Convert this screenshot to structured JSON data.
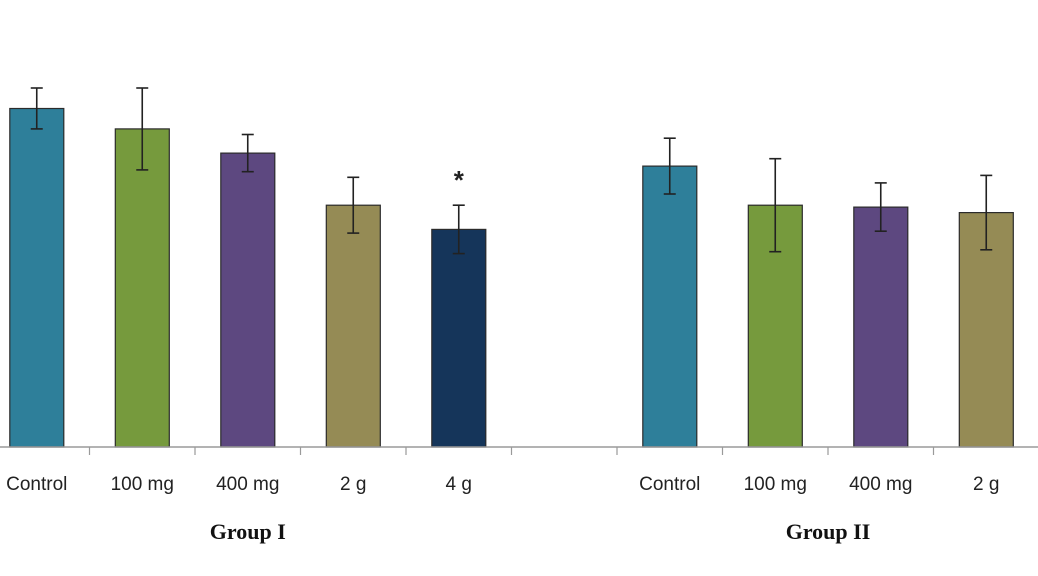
{
  "chart_data": {
    "type": "bar",
    "ylim": [
      0,
      100
    ],
    "grid": false,
    "legend": "none",
    "groups": [
      {
        "name": "Group I",
        "categories": [
          "Control",
          "100 mg",
          "400 mg",
          "2 g",
          "4 g"
        ],
        "values": [
          91,
          85.5,
          79,
          65,
          58.5
        ],
        "errors": [
          5.5,
          11,
          5,
          7.5,
          6.5
        ],
        "colors": [
          "#2e7f9a",
          "#769a3d",
          "#5d4880",
          "#958b55",
          "#15355a"
        ],
        "markers": [
          "",
          "",
          "",
          "",
          "*"
        ]
      },
      {
        "name": "Group II",
        "categories": [
          "Control",
          "100 mg",
          "400 mg",
          "2 g"
        ],
        "values": [
          75.5,
          65,
          64.5,
          63
        ],
        "errors": [
          7.5,
          12.5,
          6.5,
          10
        ],
        "colors": [
          "#2e7f9a",
          "#769a3d",
          "#5d4880",
          "#958b55"
        ],
        "markers": [
          "",
          "",
          "",
          ""
        ]
      }
    ]
  }
}
